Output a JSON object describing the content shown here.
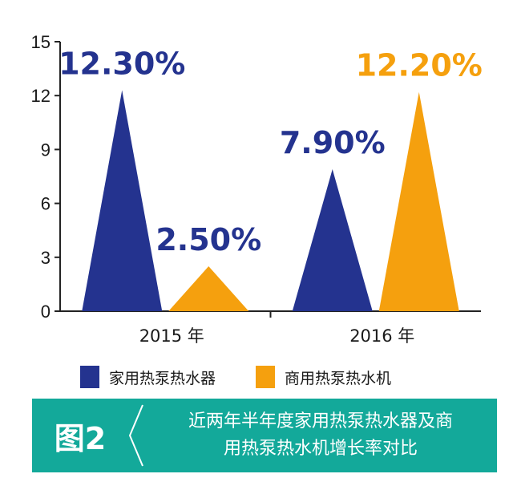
{
  "chart_data": {
    "type": "bar",
    "bar_shape": "triangle",
    "categories": [
      "2015 年",
      "2016 年"
    ],
    "series": [
      {
        "name": "家用热泵热水器",
        "values": [
          12.3,
          7.9
        ],
        "labels": [
          "12.30%",
          "7.90%"
        ],
        "color": "#24338f",
        "label_color": "#24338f"
      },
      {
        "name": "商用热泵热水机",
        "values": [
          2.5,
          12.2
        ],
        "labels": [
          "2.50%",
          "12.20%"
        ],
        "color": "#f5a00e",
        "label_color": "#24338f"
      }
    ],
    "yticks": [
      "0",
      "3",
      "6",
      "9",
      "12",
      "15"
    ],
    "ylim": [
      0,
      15
    ],
    "grid": false,
    "legend_position": "bottom"
  },
  "label_colors_override": {
    "12.20%": "#f5a00e"
  },
  "caption": {
    "tag": "图2",
    "title_line1": "近两年半年度家用热泵热水器及商",
    "title_line2": "用热泵热水机增长率对比",
    "background": "#13a99a"
  }
}
